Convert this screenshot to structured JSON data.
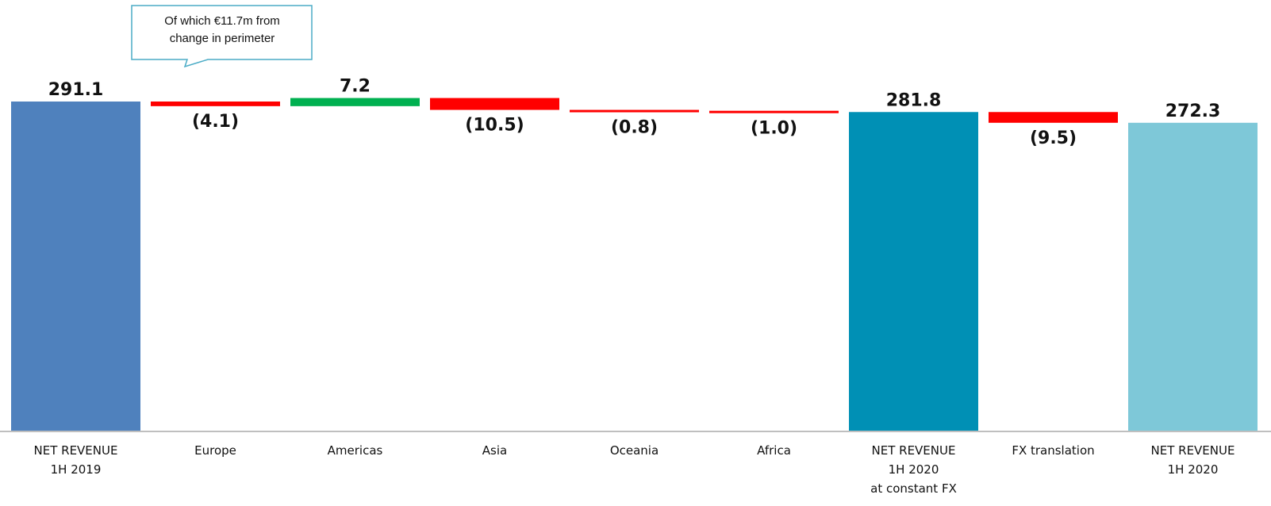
{
  "chart_data": {
    "type": "bar",
    "subtype": "waterfall",
    "categories": [
      [
        "NET REVENUE",
        "1H 2019"
      ],
      [
        "Europe"
      ],
      [
        "Americas"
      ],
      [
        "Asia"
      ],
      [
        "Oceania"
      ],
      [
        "Africa"
      ],
      [
        "NET REVENUE",
        "1H 2020",
        "at constant FX"
      ],
      [
        "FX translation"
      ],
      [
        "NET REVENUE",
        "1H 2020"
      ]
    ],
    "bars": [
      {
        "kind": "total",
        "value": 291.1,
        "label": "291.1",
        "color": "#4F81BD"
      },
      {
        "kind": "delta",
        "value": -4.1,
        "label": "(4.1)",
        "color": "#FF0000"
      },
      {
        "kind": "delta",
        "value": 7.2,
        "label": "7.2",
        "color": "#00B050"
      },
      {
        "kind": "delta",
        "value": -10.5,
        "label": "(10.5)",
        "color": "#FF0000"
      },
      {
        "kind": "delta",
        "value": -0.8,
        "label": "(0.8)",
        "color": "#FF0000"
      },
      {
        "kind": "delta",
        "value": -1.0,
        "label": "(1.0)",
        "color": "#FF0000"
      },
      {
        "kind": "total",
        "value": 281.8,
        "label": "281.8",
        "color": "#0090B5"
      },
      {
        "kind": "delta",
        "value": -9.5,
        "label": "(9.5)",
        "color": "#FF0000"
      },
      {
        "kind": "total",
        "value": 272.3,
        "label": "272.3",
        "color": "#7EC8D8"
      }
    ],
    "title": "",
    "xlabel": "",
    "ylabel": "",
    "grid": false,
    "legend": "none",
    "annotation": {
      "lines": [
        "Of which €11.7m from",
        "change in perimeter"
      ],
      "points_to": "Europe"
    }
  }
}
